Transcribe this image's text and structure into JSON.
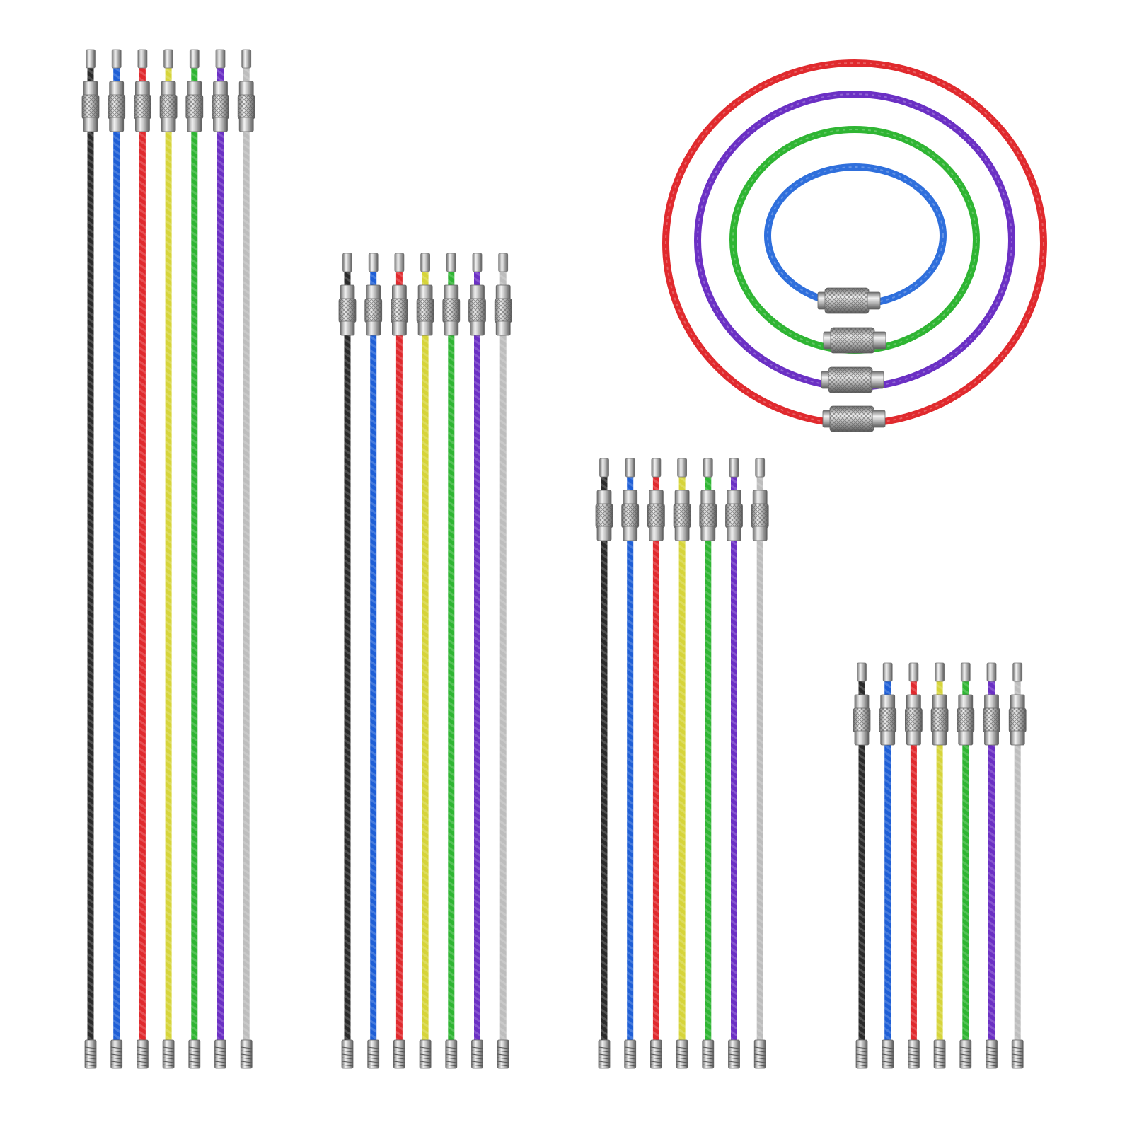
{
  "cable_colors": [
    "#2b2b2b",
    "#1f5fd6",
    "#e02a2e",
    "#d6d43a",
    "#2fb533",
    "#6b30c4",
    "#bdbdbd"
  ],
  "ring_colors": [
    "#e02a2e",
    "#6b30c4",
    "#2fb533",
    "#2f6fdc"
  ],
  "metal_color": "#c9c9c9"
}
